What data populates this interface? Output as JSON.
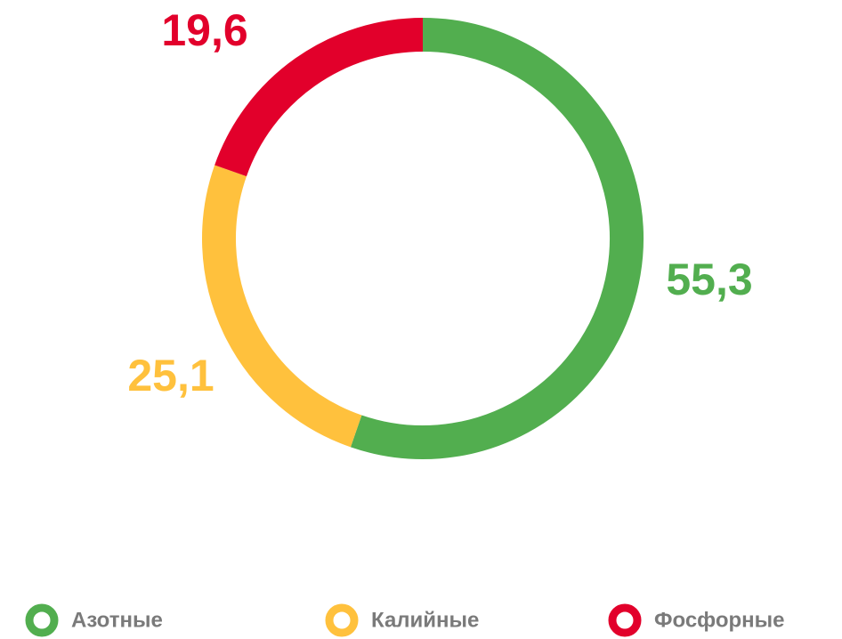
{
  "chart_data": {
    "type": "donut",
    "categories": [
      "Азотные",
      "Калийные",
      "Фосфорные"
    ],
    "values": [
      55.3,
      25.1,
      19.6
    ],
    "value_labels": [
      "55,3",
      "25,1",
      "19,6"
    ],
    "colors": [
      "#52ae4f",
      "#ffc13d",
      "#e2002b"
    ]
  }
}
